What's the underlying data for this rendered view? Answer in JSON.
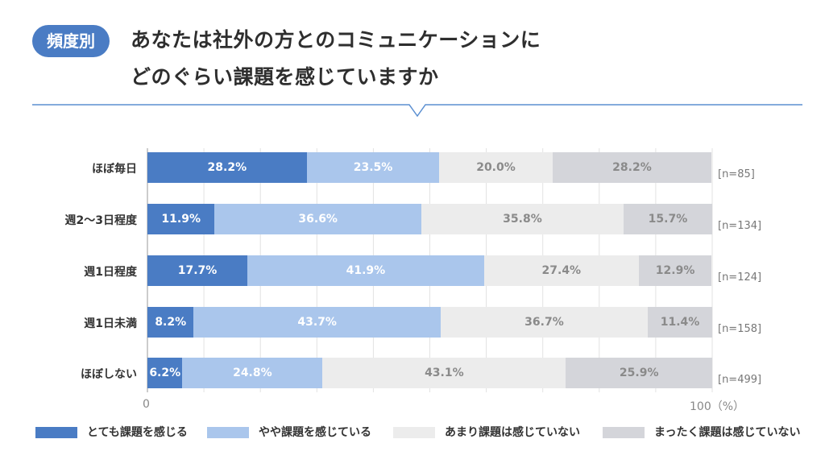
{
  "header": {
    "badge": "頻度別",
    "title_line1": "あなたは社外の方とのコミュニケーションに",
    "title_line2": "どのぐらい課題を感じていますか"
  },
  "chart_data": {
    "type": "bar",
    "orientation": "horizontal",
    "stacked": true,
    "percent_stacked": true,
    "categories": [
      "ほぼ毎日",
      "週2～3日程度",
      "週1日程度",
      "週1日未満",
      "ほぼしない"
    ],
    "sample_sizes": [
      "[n=85]",
      "[n=134]",
      "[n=124]",
      "[n=158]",
      "[n=499]"
    ],
    "series": [
      {
        "name": "とても課題を感じる",
        "values": [
          28.2,
          11.9,
          17.7,
          8.2,
          6.2
        ],
        "color": "#4a7cc4",
        "label_color": "#ffffff"
      },
      {
        "name": "やや課題を感じている",
        "values": [
          23.5,
          36.6,
          41.9,
          43.7,
          24.8
        ],
        "color": "#aac6ec",
        "label_color": "#ffffff"
      },
      {
        "name": "あまり課題は感じていない",
        "values": [
          20.0,
          35.8,
          27.4,
          36.7,
          43.1
        ],
        "color": "#ececec",
        "label_color": "#8a8a8a"
      },
      {
        "name": "まったく課題は感じていない",
        "values": [
          28.2,
          15.7,
          12.9,
          11.4,
          25.9
        ],
        "color": "#d4d5da",
        "label_color": "#8a8a8a"
      }
    ],
    "xlim": [
      0,
      100
    ],
    "x_tick_start": "0",
    "x_tick_end": "100",
    "x_unit": "（%）",
    "legend_position": "bottom",
    "grid": true
  }
}
